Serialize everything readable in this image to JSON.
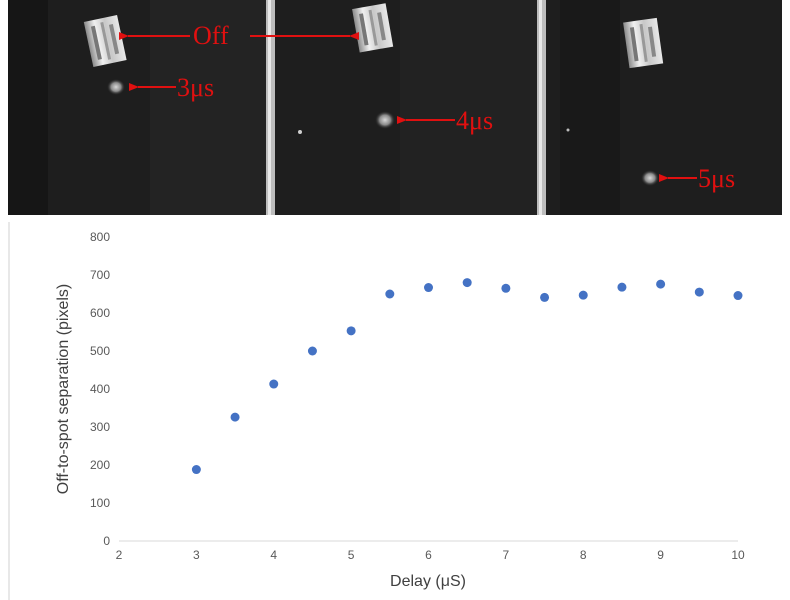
{
  "images": {
    "panel_labels": [
      "3μs",
      "4μs",
      "5μs"
    ],
    "off_label": "Off",
    "annotation_color": "#e01010"
  },
  "chart_data": {
    "type": "scatter",
    "title": "",
    "xlabel": "Delay (μS)",
    "ylabel": "Off-to-spot separation (pixels)",
    "xlim": [
      2,
      10
    ],
    "ylim": [
      0,
      800
    ],
    "xticks": [
      "2",
      "3",
      "4",
      "5",
      "6",
      "7",
      "8",
      "9",
      "10"
    ],
    "yticks": [
      "0",
      "100",
      "200",
      "300",
      "400",
      "500",
      "600",
      "700",
      "800"
    ],
    "grid": false,
    "legend": "none",
    "marker_color": "#4472c4",
    "x": [
      3,
      3.5,
      4,
      4.5,
      5,
      5.5,
      6,
      6.5,
      7,
      7.5,
      8,
      8.5,
      9,
      9.5,
      10
    ],
    "y": [
      188,
      326,
      413,
      500,
      553,
      650,
      667,
      680,
      665,
      641,
      647,
      668,
      676,
      655,
      646
    ]
  }
}
